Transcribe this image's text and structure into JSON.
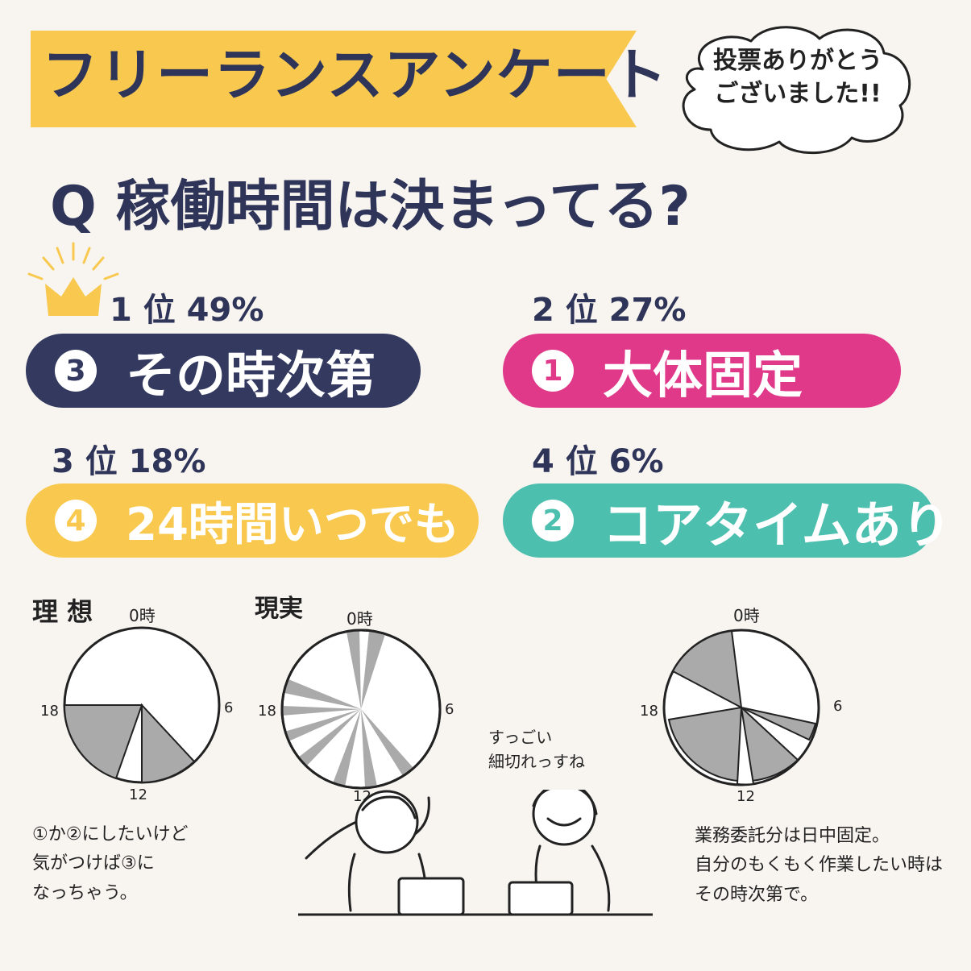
{
  "header": {
    "title": "フリーランスアンケート"
  },
  "thanks": {
    "line1": "投票ありがとう",
    "line2": "ございました!!"
  },
  "question": "Q 稼働時間は決まってる?",
  "results": [
    {
      "rank": "1 位 49%",
      "num": "3",
      "label": "その時次第",
      "color": "#33395f"
    },
    {
      "rank": "2 位 27%",
      "num": "1",
      "label": "大体固定",
      "color": "#e0398a"
    },
    {
      "rank": "3 位 18%",
      "num": "4",
      "label": "24時間いつでも",
      "color": "#f9c94f"
    },
    {
      "rank": "4 位 6%",
      "num": "2",
      "label": "コアタイムあり",
      "color": "#4cbfae"
    }
  ],
  "charts": {
    "ideal_title": "理 想",
    "reality_title": "現実",
    "labels": {
      "top": "0時",
      "right": "6",
      "bottom": "12",
      "left": "18"
    },
    "chat": "すっごい\n細切れっすね"
  },
  "captions": {
    "left": [
      "①か②にしたいけど",
      "気がつけば③に",
      "なっちゃう。"
    ],
    "right": [
      "業務委託分は日中固定。",
      "自分のもくもく作業したい時は",
      "その時次第で。"
    ]
  },
  "colors": {
    "background": "#f8f5f1",
    "banner": "#f9c94f",
    "text": "#2f3558",
    "pie_shade": "#aaaaaa"
  }
}
